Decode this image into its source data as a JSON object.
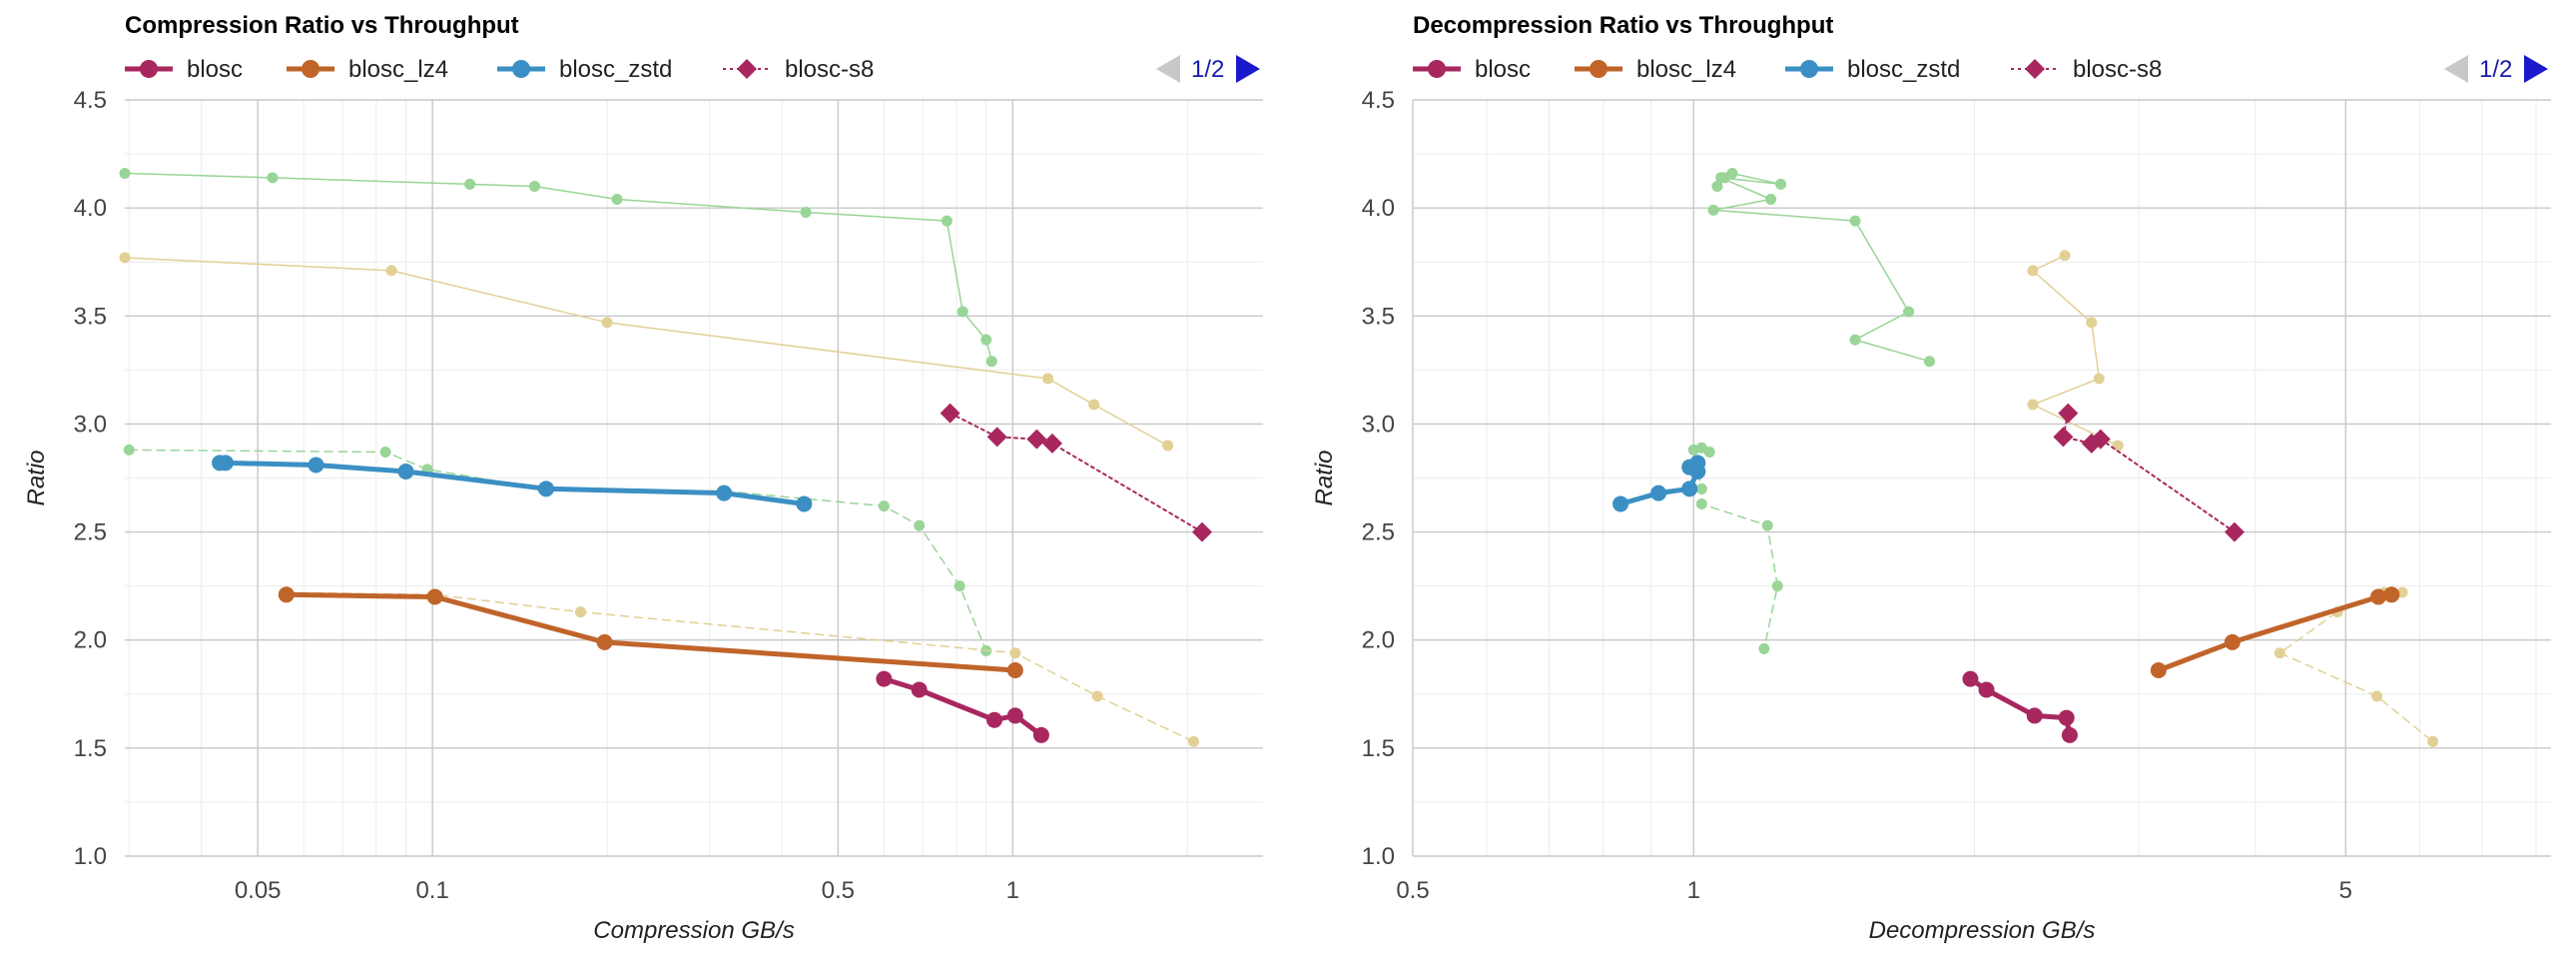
{
  "chart_data": [
    {
      "type": "line",
      "title": "Compression Ratio vs Throughput",
      "xlabel": "Compression GB/s",
      "ylabel": "Ratio",
      "xscale": "log",
      "xlim": [
        0.0295,
        2.7
      ],
      "ylim": [
        1.0,
        4.5
      ],
      "xticks": [
        {
          "v": 0.05,
          "label": "0.05"
        },
        {
          "v": 0.1,
          "label": "0.1"
        },
        {
          "v": 0.5,
          "label": "0.5"
        },
        {
          "v": 1,
          "label": "1"
        }
      ],
      "yticks": [
        {
          "v": 1.0,
          "label": "1.0"
        },
        {
          "v": 1.5,
          "label": "1.5"
        },
        {
          "v": 2.0,
          "label": "2.0"
        },
        {
          "v": 2.5,
          "label": "2.5"
        },
        {
          "v": 3.0,
          "label": "3.0"
        },
        {
          "v": 3.5,
          "label": "3.5"
        },
        {
          "v": 4.0,
          "label": "4.0"
        },
        {
          "v": 4.5,
          "label": "4.5"
        }
      ],
      "grid": true,
      "legend": {
        "position": "top",
        "items": [
          "blosc",
          "blosc_lz4",
          "blosc_zstd",
          "blosc-s8"
        ],
        "pager": "1/2"
      },
      "series": [
        {
          "name": "blosc",
          "color": "#a8275f",
          "style": "solid",
          "width": 5,
          "marker": "circle",
          "points": [
            [
              0.6,
              1.82
            ],
            [
              0.69,
              1.77
            ],
            [
              0.93,
              1.63
            ],
            [
              1.01,
              1.65
            ],
            [
              1.12,
              1.56
            ]
          ]
        },
        {
          "name": "blosc_lz4",
          "color": "#c0642a",
          "style": "solid",
          "width": 5,
          "marker": "circle",
          "points": [
            [
              0.056,
              2.21
            ],
            [
              0.101,
              2.2
            ],
            [
              0.198,
              1.99
            ],
            [
              1.01,
              1.86
            ]
          ]
        },
        {
          "name": "blosc_zstd",
          "color": "#3b8fc4",
          "style": "solid",
          "width": 5,
          "marker": "circle",
          "points": [
            [
              0.043,
              2.82
            ],
            [
              0.044,
              2.82
            ],
            [
              0.063,
              2.81
            ],
            [
              0.09,
              2.78
            ],
            [
              0.157,
              2.7
            ],
            [
              0.318,
              2.68
            ],
            [
              0.437,
              2.63
            ]
          ]
        },
        {
          "name": "blosc-s8",
          "color": "#a8275f",
          "style": "dotted",
          "width": 2,
          "marker": "diamond",
          "points": [
            [
              0.78,
              3.05
            ],
            [
              0.94,
              2.94
            ],
            [
              1.1,
              2.93
            ],
            [
              1.17,
              2.91
            ],
            [
              2.12,
              2.5
            ]
          ]
        },
        {
          "name": "",
          "color": "#98d596",
          "style": "solid",
          "width": 1.5,
          "marker": "dot",
          "points": [
            [
              0.0295,
              4.16
            ],
            [
              0.053,
              4.14
            ],
            [
              0.116,
              4.11
            ],
            [
              0.15,
              4.1
            ],
            [
              0.208,
              4.04
            ],
            [
              0.44,
              3.98
            ],
            [
              0.77,
              3.94
            ],
            [
              0.82,
              3.52
            ],
            [
              0.9,
              3.39
            ],
            [
              0.92,
              3.29
            ]
          ]
        },
        {
          "name": "",
          "color": "#98d596",
          "style": "dashed",
          "width": 1.5,
          "marker": "dot",
          "points": [
            [
              0.03,
              2.88
            ],
            [
              0.083,
              2.87
            ],
            [
              0.098,
              2.79
            ],
            [
              0.155,
              2.7
            ],
            [
              0.316,
              2.69
            ],
            [
              0.6,
              2.62
            ],
            [
              0.69,
              2.53
            ],
            [
              0.81,
              2.25
            ],
            [
              0.9,
              1.95
            ]
          ]
        },
        {
          "name": "",
          "color": "#e2d095",
          "style": "solid",
          "width": 1.5,
          "marker": "dot",
          "points": [
            [
              0.0295,
              3.77
            ],
            [
              0.085,
              3.71
            ],
            [
              0.2,
              3.47
            ],
            [
              1.15,
              3.21
            ],
            [
              1.38,
              3.09
            ],
            [
              1.85,
              2.9
            ]
          ]
        },
        {
          "name": "",
          "color": "#e2d095",
          "style": "dashed",
          "width": 1.5,
          "marker": "dot",
          "points": [
            [
              0.056,
              2.22
            ],
            [
              0.101,
              2.21
            ],
            [
              0.18,
              2.13
            ],
            [
              1.01,
              1.94
            ],
            [
              1.4,
              1.74
            ],
            [
              2.05,
              1.53
            ]
          ]
        }
      ]
    },
    {
      "type": "line",
      "title": "Decompression Ratio vs Throughput",
      "xlabel": "Decompression GB/s",
      "ylabel": "Ratio",
      "xscale": "log",
      "xlim": [
        0.5,
        8.3
      ],
      "ylim": [
        1.0,
        4.5
      ],
      "xticks": [
        {
          "v": 0.5,
          "label": "0.5"
        },
        {
          "v": 1,
          "label": "1"
        },
        {
          "v": 5,
          "label": "5"
        }
      ],
      "yticks": [
        {
          "v": 1.0,
          "label": "1.0"
        },
        {
          "v": 1.5,
          "label": "1.5"
        },
        {
          "v": 2.0,
          "label": "2.0"
        },
        {
          "v": 2.5,
          "label": "2.5"
        },
        {
          "v": 3.0,
          "label": "3.0"
        },
        {
          "v": 3.5,
          "label": "3.5"
        },
        {
          "v": 4.0,
          "label": "4.0"
        },
        {
          "v": 4.5,
          "label": "4.5"
        }
      ],
      "grid": true,
      "legend": {
        "position": "top",
        "items": [
          "blosc",
          "blosc_lz4",
          "blosc_zstd",
          "blosc-s8"
        ],
        "pager": "1/2"
      },
      "series": [
        {
          "name": "blosc",
          "color": "#a8275f",
          "style": "solid",
          "width": 5,
          "marker": "circle",
          "points": [
            [
              1.98,
              1.82
            ],
            [
              2.06,
              1.77
            ],
            [
              2.32,
              1.65
            ],
            [
              2.51,
              1.64
            ],
            [
              2.53,
              1.56
            ]
          ]
        },
        {
          "name": "blosc_lz4",
          "color": "#c0642a",
          "style": "solid",
          "width": 5,
          "marker": "circle",
          "points": [
            [
              3.15,
              1.86
            ],
            [
              3.78,
              1.99
            ],
            [
              5.42,
              2.2
            ],
            [
              5.6,
              2.21
            ]
          ]
        },
        {
          "name": "blosc_zstd",
          "color": "#3b8fc4",
          "style": "solid",
          "width": 5,
          "marker": "circle",
          "points": [
            [
              0.835,
              2.63
            ],
            [
              0.917,
              2.68
            ],
            [
              0.99,
              2.7
            ],
            [
              1.01,
              2.78
            ],
            [
              0.99,
              2.8
            ],
            [
              1.01,
              2.82
            ]
          ]
        },
        {
          "name": "blosc-s8",
          "color": "#a8275f",
          "style": "dotted",
          "width": 2,
          "marker": "diamond",
          "points": [
            [
              2.52,
              3.05
            ],
            [
              2.49,
              2.94
            ],
            [
              2.67,
              2.91
            ],
            [
              2.73,
              2.93
            ],
            [
              3.8,
              2.5
            ]
          ]
        },
        {
          "name": "",
          "color": "#98d596",
          "style": "solid",
          "width": 1.5,
          "marker": "dot",
          "points": [
            [
              1.06,
              4.1
            ],
            [
              1.08,
              4.14
            ],
            [
              1.1,
              4.16
            ],
            [
              1.24,
              4.11
            ],
            [
              1.07,
              4.14
            ],
            [
              1.21,
              4.04
            ],
            [
              1.05,
              3.99
            ],
            [
              1.49,
              3.94
            ],
            [
              1.7,
              3.52
            ],
            [
              1.49,
              3.39
            ],
            [
              1.79,
              3.29
            ]
          ]
        },
        {
          "name": "",
          "color": "#98d596",
          "style": "dashed",
          "width": 1.5,
          "marker": "dot",
          "points": [
            [
              1.0,
              2.88
            ],
            [
              1.02,
              2.89
            ],
            [
              1.04,
              2.87
            ],
            [
              1.01,
              2.8
            ],
            [
              1.02,
              2.7
            ],
            [
              1.02,
              2.63
            ],
            [
              1.2,
              2.53
            ],
            [
              1.23,
              2.25
            ],
            [
              1.19,
              1.96
            ]
          ]
        },
        {
          "name": "",
          "color": "#e2d095",
          "style": "solid",
          "width": 1.5,
          "marker": "dot",
          "points": [
            [
              2.5,
              3.78
            ],
            [
              2.31,
              3.71
            ],
            [
              2.67,
              3.47
            ],
            [
              2.72,
              3.21
            ],
            [
              2.31,
              3.09
            ],
            [
              2.85,
              2.9
            ]
          ]
        },
        {
          "name": "",
          "color": "#e2d095",
          "style": "dashed",
          "width": 1.5,
          "marker": "dot",
          "points": [
            [
              5.75,
              2.22
            ],
            [
              5.5,
              2.22
            ],
            [
              4.9,
              2.13
            ],
            [
              4.25,
              1.94
            ],
            [
              5.4,
              1.74
            ],
            [
              6.2,
              1.53
            ]
          ]
        }
      ]
    }
  ]
}
